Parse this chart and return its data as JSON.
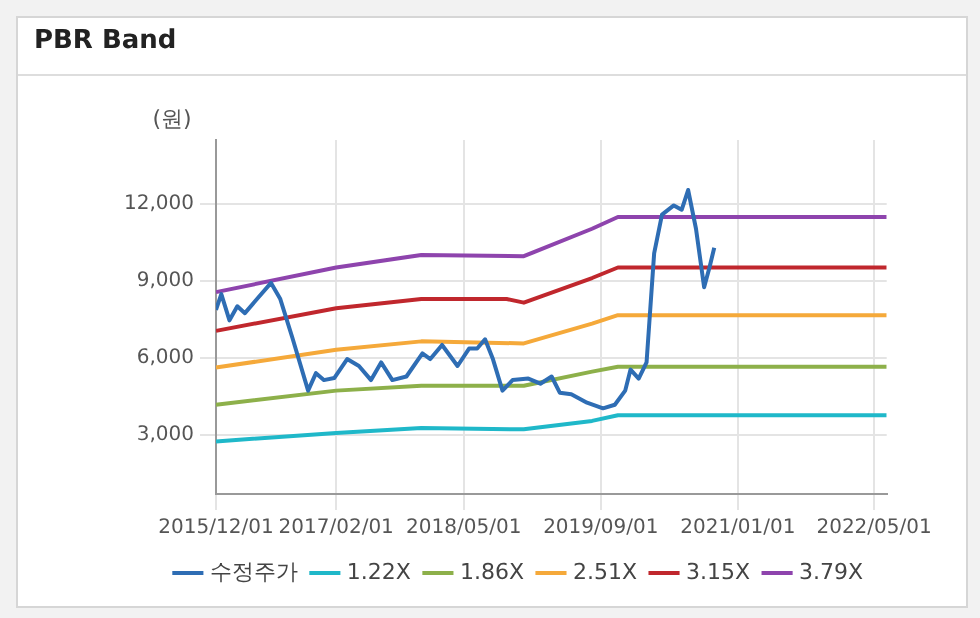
{
  "chart_data": {
    "type": "line",
    "title": "PBR Band",
    "ylabel": "(원)",
    "xlim": [
      "2015-12-01",
      "2022-06-15"
    ],
    "ylim": [
      700,
      14500
    ],
    "xticks": [
      {
        "value": "2015-12-01",
        "label": "2015/12/01"
      },
      {
        "value": "2017-02-01",
        "label": "2017/02/01"
      },
      {
        "value": "2018-05-01",
        "label": "2018/05/01"
      },
      {
        "value": "2019-09-01",
        "label": "2019/09/01"
      },
      {
        "value": "2021-01-01",
        "label": "2021/01/01"
      },
      {
        "value": "2022-05-01",
        "label": "2022/05/01"
      }
    ],
    "yticks": [
      {
        "value": 3000,
        "label": "3,000"
      },
      {
        "value": 6000,
        "label": "6,000"
      },
      {
        "value": 9000,
        "label": "9,000"
      },
      {
        "value": 12000,
        "label": "12,000"
      }
    ],
    "grid": true,
    "legend": "bottom",
    "marker": "none",
    "line_style": "solid",
    "series": [
      {
        "name": "수정주가",
        "color": "#2e6db4",
        "x": [
          "2015-12-01",
          "2015-12-20",
          "2016-01-18",
          "2016-02-15",
          "2016-03-13",
          "2016-04-25",
          "2016-06-14",
          "2016-07-17",
          "2016-08-29",
          "2016-10-24",
          "2016-11-21",
          "2016-12-19",
          "2017-01-25",
          "2017-03-12",
          "2017-04-23",
          "2017-06-05",
          "2017-07-11",
          "2017-08-20",
          "2017-10-09",
          "2017-12-05",
          "2018-01-02",
          "2018-02-13",
          "2018-04-09",
          "2018-05-20",
          "2018-06-18",
          "2018-07-16",
          "2018-08-13",
          "2018-09-16",
          "2018-10-22",
          "2018-12-17",
          "2019-01-29",
          "2019-03-10",
          "2019-04-08",
          "2019-05-19",
          "2019-07-14",
          "2019-09-09",
          "2019-10-21",
          "2019-11-27",
          "2019-12-16",
          "2020-01-14",
          "2020-02-11",
          "2020-03-09",
          "2020-04-06",
          "2020-05-18",
          "2020-06-15",
          "2020-07-08",
          "2020-08-05",
          "2020-09-03",
          "2020-09-22",
          "2020-10-09"
        ],
        "values": [
          7880,
          8490,
          7470,
          8020,
          7750,
          8300,
          8930,
          8300,
          6790,
          4730,
          5410,
          5140,
          5220,
          5960,
          5690,
          5140,
          5830,
          5140,
          5280,
          6180,
          5960,
          6510,
          5690,
          6370,
          6370,
          6730,
          5960,
          4730,
          5140,
          5200,
          5000,
          5280,
          4650,
          4590,
          4260,
          4040,
          4180,
          4730,
          5550,
          5200,
          5830,
          10080,
          11590,
          11950,
          11780,
          12550,
          11040,
          8760,
          9530,
          10300
        ]
      },
      {
        "name": "1.22X",
        "color": "#1fb8c9",
        "x": [
          "2015-12-01",
          "2017-02-01",
          "2017-12-01",
          "2018-12-01",
          "2019-08-01",
          "2019-11-01",
          "2022-06-15"
        ],
        "values": [
          2750,
          3080,
          3270,
          3220,
          3550,
          3770,
          3770
        ]
      },
      {
        "name": "1.86X",
        "color": "#8db04a",
        "x": [
          "2015-12-01",
          "2017-02-01",
          "2017-12-01",
          "2018-12-01",
          "2019-08-01",
          "2019-11-01",
          "2022-06-15"
        ],
        "values": [
          4180,
          4730,
          4920,
          4920,
          5470,
          5660,
          5660
        ]
      },
      {
        "name": "2.51X",
        "color": "#f5a93a",
        "x": [
          "2015-12-01",
          "2017-02-01",
          "2017-12-01",
          "2018-12-01",
          "2019-08-01",
          "2019-11-01",
          "2022-06-15"
        ],
        "values": [
          5630,
          6320,
          6650,
          6570,
          7340,
          7670,
          7670
        ]
      },
      {
        "name": "3.15X",
        "color": "#c0272d",
        "x": [
          "2015-12-01",
          "2017-02-01",
          "2017-12-01",
          "2018-10-01",
          "2018-12-01",
          "2019-08-01",
          "2019-11-01",
          "2022-06-15"
        ],
        "values": [
          7060,
          7940,
          8300,
          8300,
          8160,
          9120,
          9530,
          9530
        ]
      },
      {
        "name": "3.79X",
        "color": "#8e44ad",
        "x": [
          "2015-12-01",
          "2017-02-01",
          "2017-12-01",
          "2018-12-01",
          "2019-08-01",
          "2019-11-01",
          "2022-06-15"
        ],
        "values": [
          8570,
          9530,
          10020,
          9970,
          11040,
          11500,
          11500
        ]
      }
    ]
  }
}
